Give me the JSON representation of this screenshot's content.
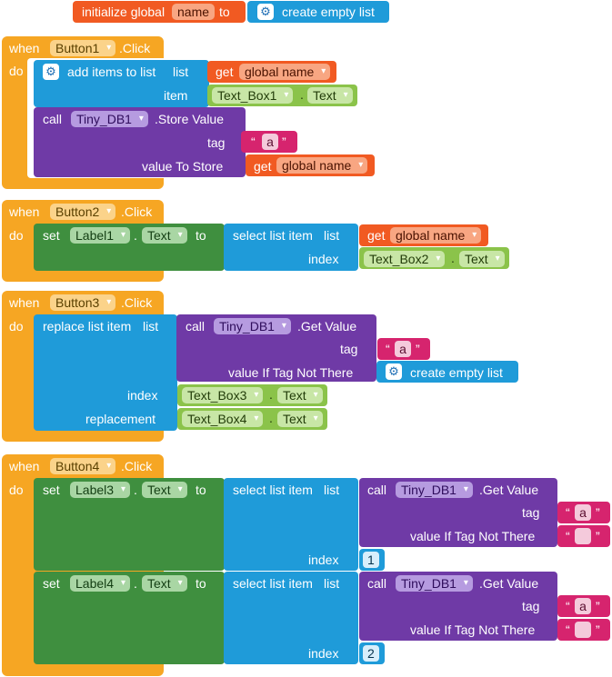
{
  "global_init": {
    "label": "initialize global",
    "var_name": "name",
    "to": "to",
    "value": "create empty list"
  },
  "common": {
    "when": "when",
    "do": "do",
    "click": ".Click",
    "set": "set",
    "to": "to",
    "dot": ".",
    "call": "call",
    "get": "get",
    "list": "list",
    "index": "index",
    "tag": "tag",
    "store_value": ".Store Value",
    "get_value": ".Get Value",
    "value_to_store": "value To Store",
    "value_if_not_there": "value If Tag Not There",
    "select_list_item": "select list item",
    "add_items": "add items to list",
    "item": "item",
    "replace_list_item": "replace list item",
    "replacement": "replacement",
    "create_empty_list": "create empty list",
    "global_name": "global name",
    "tinydb": "Tiny_DB1",
    "text_prop": "Text",
    "open_quote": "“",
    "close_quote": "”",
    "str_a": "a",
    "str_empty": ""
  },
  "events": [
    {
      "button": "Button1",
      "textbox1": "Text_Box1"
    },
    {
      "button": "Button2",
      "label": "Label1",
      "textbox": "Text_Box2"
    },
    {
      "button": "Button3",
      "textbox_index": "Text_Box3",
      "textbox_repl": "Text_Box4"
    },
    {
      "button": "Button4",
      "label_a": "Label3",
      "label_b": "Label4",
      "index_a": "1",
      "index_b": "2"
    }
  ]
}
